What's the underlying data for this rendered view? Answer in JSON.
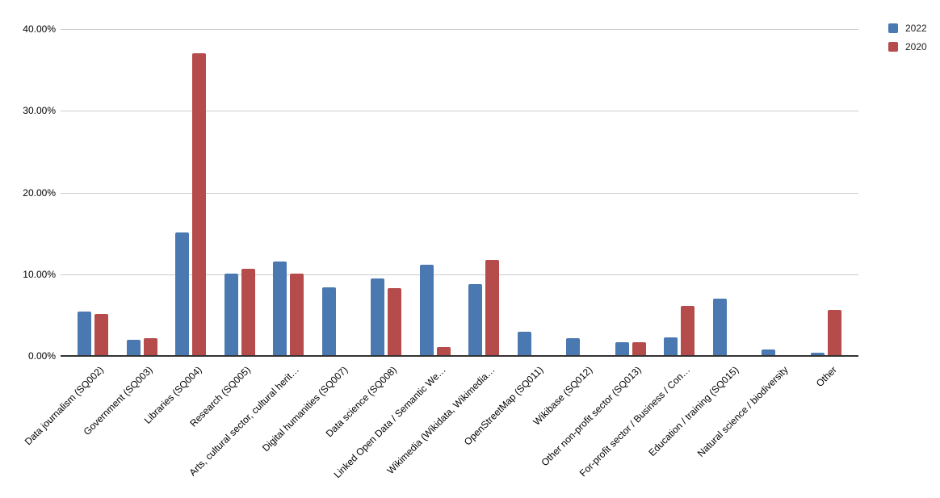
{
  "chart_data": {
    "type": "bar",
    "title": "",
    "xlabel": "",
    "ylabel": "",
    "ylim": [
      0,
      40
    ],
    "grid": true,
    "legend_position": "top-right",
    "y_ticks": [
      {
        "value": 0,
        "label": "0.00%"
      },
      {
        "value": 10,
        "label": "10.00%"
      },
      {
        "value": 20,
        "label": "20.00%"
      },
      {
        "value": 30,
        "label": "30.00%"
      },
      {
        "value": 40,
        "label": "40.00%"
      }
    ],
    "categories": [
      "Data journalism (SQ002)",
      "Government (SQ003)",
      "Libraries (SQ004)",
      "Research (SQ005)",
      "Arts, cultural sector, cultural herit…",
      "Digital humanities (SQ007)",
      "Data science (SQ008)",
      "Linked Open Data / Semantic We…",
      "Wikimedia (Wikidata, Wikimedia…",
      "OpenStreetMap (SQ011)",
      "Wikibase (SQ012)",
      "Other non-profit sector (SQ013)",
      "For-profit sector / Business / Con…",
      "Education / training (SQ015)",
      "Natural science / biodiversity",
      "Other"
    ],
    "series": [
      {
        "name": "2022",
        "color": "#4a78b0",
        "values": [
          5.4,
          2.0,
          15.1,
          10.1,
          11.6,
          8.4,
          9.5,
          11.2,
          8.8,
          3.0,
          2.2,
          1.7,
          2.3,
          7.0,
          0.8,
          0.4
        ]
      },
      {
        "name": "2020",
        "color": "#b64b4b",
        "values": [
          5.1,
          2.2,
          37.0,
          10.7,
          10.1,
          0,
          8.3,
          1.1,
          11.8,
          0,
          0,
          1.7,
          6.1,
          0,
          0,
          5.6
        ]
      }
    ]
  },
  "colors": {
    "background": "#ffffff",
    "gridline": "#cccccc",
    "axis_line": "#333333",
    "label_text": "#000000",
    "legend_text": "#222222"
  }
}
